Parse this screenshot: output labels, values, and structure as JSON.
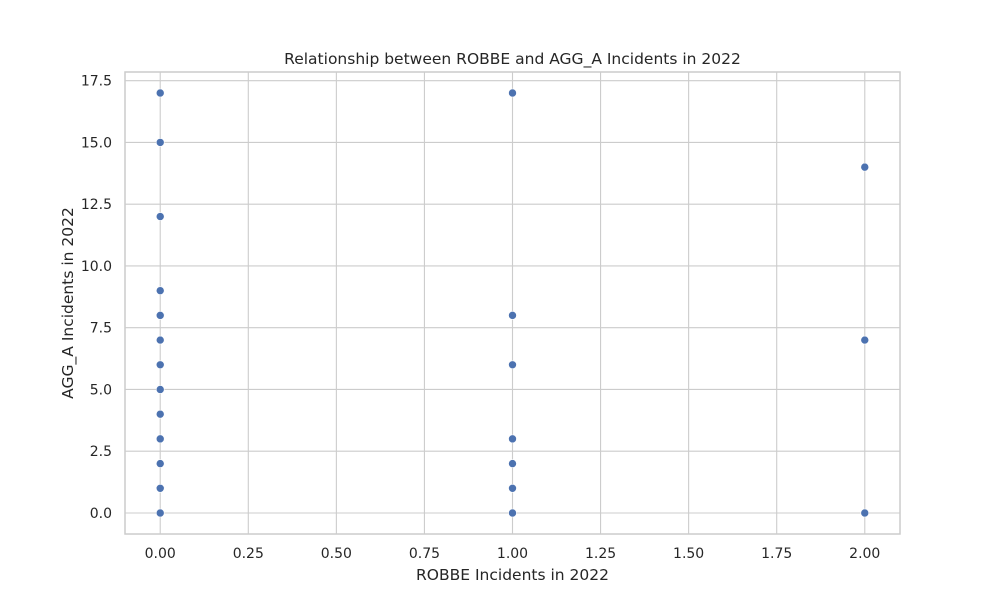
{
  "chart_data": {
    "type": "scatter",
    "title": "Relationship between ROBBE and AGG_A Incidents in 2022",
    "xlabel": "ROBBE Incidents in 2022",
    "ylabel": "AGG_A Incidents in 2022",
    "xlim": [
      -0.1,
      2.1
    ],
    "ylim": [
      -0.85,
      17.85
    ],
    "x_ticks": [
      0.0,
      0.25,
      0.5,
      0.75,
      1.0,
      1.25,
      1.5,
      1.75,
      2.0
    ],
    "x_tick_labels": [
      "0.00",
      "0.25",
      "0.50",
      "0.75",
      "1.00",
      "1.25",
      "1.50",
      "1.75",
      "2.00"
    ],
    "y_ticks": [
      0.0,
      2.5,
      5.0,
      7.5,
      10.0,
      12.5,
      15.0,
      17.5
    ],
    "y_tick_labels": [
      "0.0",
      "2.5",
      "5.0",
      "7.5",
      "10.0",
      "12.5",
      "15.0",
      "17.5"
    ],
    "grid": true,
    "marker_color": "#4c72b0",
    "grid_color": "#cccccc",
    "points": [
      {
        "x": 0,
        "y": 17
      },
      {
        "x": 0,
        "y": 15
      },
      {
        "x": 0,
        "y": 12
      },
      {
        "x": 0,
        "y": 9
      },
      {
        "x": 0,
        "y": 8
      },
      {
        "x": 0,
        "y": 7
      },
      {
        "x": 0,
        "y": 6
      },
      {
        "x": 0,
        "y": 5
      },
      {
        "x": 0,
        "y": 4
      },
      {
        "x": 0,
        "y": 3
      },
      {
        "x": 0,
        "y": 2
      },
      {
        "x": 0,
        "y": 1
      },
      {
        "x": 0,
        "y": 0
      },
      {
        "x": 1,
        "y": 17
      },
      {
        "x": 1,
        "y": 8
      },
      {
        "x": 1,
        "y": 6
      },
      {
        "x": 1,
        "y": 3
      },
      {
        "x": 1,
        "y": 2
      },
      {
        "x": 1,
        "y": 1
      },
      {
        "x": 1,
        "y": 0
      },
      {
        "x": 2,
        "y": 14
      },
      {
        "x": 2,
        "y": 7
      },
      {
        "x": 2,
        "y": 0
      }
    ]
  }
}
